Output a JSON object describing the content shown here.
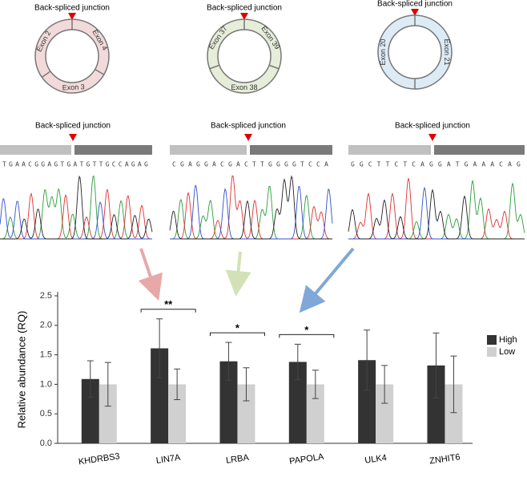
{
  "diagrams": [
    {
      "junction_label": "Back-spliced junction",
      "exons": [
        "Exon 4",
        "Exon 3",
        "Exon 2"
      ]
    },
    {
      "junction_label": "Back-spliced junction",
      "exons": [
        "Exon 39",
        "Exon 38",
        "Exon 37"
      ]
    },
    {
      "junction_label": "Back-spliced junction",
      "exons": [
        "Exon 21",
        "Exon 20"
      ]
    }
  ],
  "sequences": [
    {
      "junction_label": "Back-spliced junction",
      "sequence": "TGAACGGAGTGATGTTGCCAGAG"
    },
    {
      "junction_label": "Back-spliced junction",
      "sequence": "CGAGGACGACTTGGGGTCCA"
    },
    {
      "junction_label": "Back-spliced junction",
      "sequence": "GGCTTCTCAGGATGAAACAG"
    }
  ],
  "chart_data": {
    "type": "bar",
    "y_label": "Relative abundance (RQ)",
    "categories": [
      "KHDRBS3",
      "LIN7A",
      "LRBA",
      "PAPOLA",
      "ULK4",
      "ZNHIT6"
    ],
    "series": [
      {
        "name": "High",
        "color": "#333333",
        "values": [
          1.09,
          1.61,
          1.39,
          1.38,
          1.41,
          1.32
        ],
        "errors": [
          0.31,
          0.5,
          0.32,
          0.3,
          0.51,
          0.55
        ]
      },
      {
        "name": "Low",
        "color": "#d0d0d0",
        "values": [
          1.0,
          1.0,
          1.0,
          1.0,
          1.0,
          1.0
        ],
        "errors": [
          0.37,
          0.26,
          0.28,
          0.24,
          0.32,
          0.48
        ]
      }
    ],
    "ylim": [
      0,
      2.5
    ],
    "yticks": [
      {
        "value": 0,
        "label": "0.0"
      },
      0.5,
      {
        "value": 1,
        "label": "1.0"
      },
      1.5,
      {
        "value": 2,
        "label": "2.0"
      },
      2.5
    ],
    "annotations": [
      {
        "category": "LIN7A",
        "label": "**"
      },
      {
        "category": "LRBA",
        "label": "*"
      },
      {
        "category": "PAPOLA",
        "label": "*"
      }
    ],
    "legend": "right"
  }
}
